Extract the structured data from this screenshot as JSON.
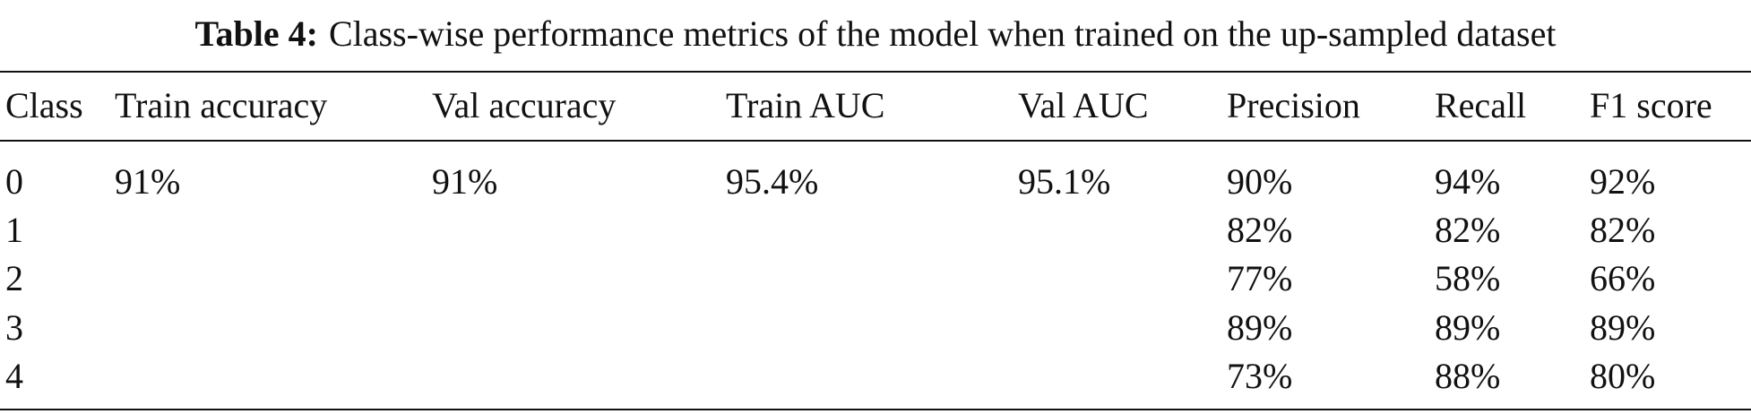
{
  "caption": {
    "label": "Table 4:",
    "text": "Class-wise performance metrics of the model when trained on the up-sampled dataset"
  },
  "table": {
    "header": [
      "Class",
      "Train accuracy",
      "Val accuracy",
      "Train AUC",
      "Val AUC",
      "Precision",
      "Recall",
      "F1 score"
    ],
    "rows": [
      [
        "0",
        "91%",
        "91%",
        "95.4%",
        "95.1%",
        "90%",
        "94%",
        "92%"
      ],
      [
        "1",
        null,
        null,
        null,
        null,
        "82%",
        "82%",
        "82%"
      ],
      [
        "2",
        null,
        null,
        null,
        null,
        "77%",
        "58%",
        "66%"
      ],
      [
        "3",
        null,
        null,
        null,
        null,
        "89%",
        "89%",
        "89%"
      ],
      [
        "4",
        null,
        null,
        null,
        null,
        "73%",
        "88%",
        "80%"
      ]
    ]
  }
}
